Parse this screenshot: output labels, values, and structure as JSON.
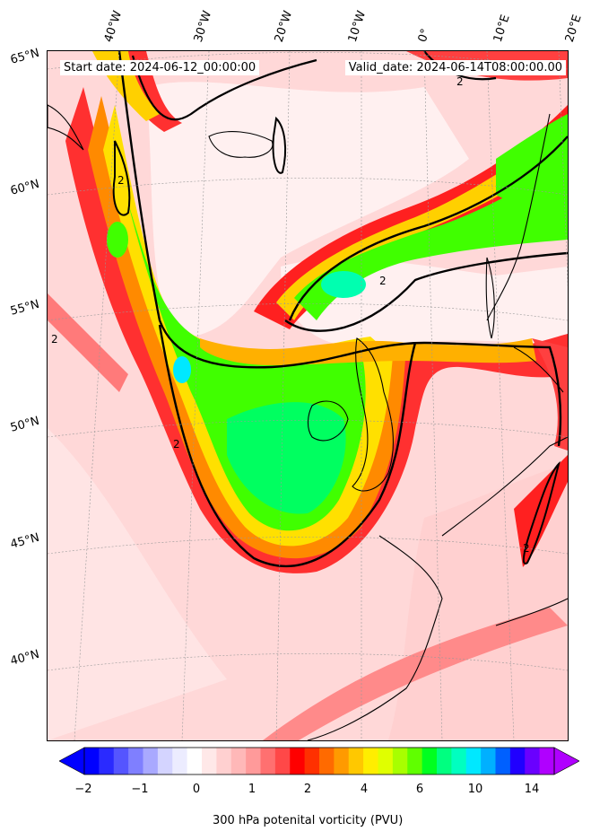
{
  "map": {
    "start_label": "Start date: 2024-06-12_00:00:00",
    "valid_label": "Valid_date: 2024-06-14T08:00:00.00",
    "lat_labels": [
      "65°N",
      "60°N",
      "55°N",
      "50°N",
      "45°N",
      "40°N"
    ],
    "lon_labels": [
      "40°W",
      "30°W",
      "20°W",
      "10°W",
      "0°",
      "10°E",
      "20°E"
    ],
    "contour_label": "2"
  },
  "colorbar": {
    "title": "300 hPa potenital vorticity (PVU)",
    "ticks": [
      "−2",
      "−1",
      "0",
      "1",
      "2",
      "4",
      "6",
      "10",
      "14"
    ],
    "colors": [
      "#0000ff",
      "#2a2aff",
      "#5555ff",
      "#7f7fff",
      "#a9a9ff",
      "#d4d4ff",
      "#ececff",
      "#ffffff",
      "#ffe8e8",
      "#ffd0d0",
      "#ffb8b8",
      "#ff9a9a",
      "#ff7070",
      "#ff4848",
      "#ff0000",
      "#ff3000",
      "#ff6a00",
      "#ff9a00",
      "#ffc800",
      "#ffee00",
      "#e0ff00",
      "#a8ff00",
      "#60ff00",
      "#00ff20",
      "#00ff80",
      "#00ffc0",
      "#00e8ff",
      "#00b0ff",
      "#0060ff",
      "#2000ff",
      "#6a00ff",
      "#b000ff"
    ],
    "under_color": "#0000ff",
    "over_color": "#b000ff"
  }
}
